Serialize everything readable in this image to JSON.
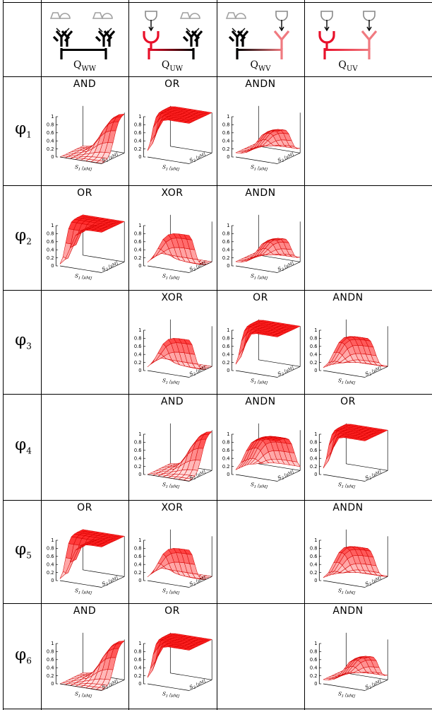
{
  "columns": [
    {
      "id": "ww",
      "label_main": "Q",
      "label_sub": "WW",
      "left": "gray",
      "right": "gray",
      "leftColor": "#000",
      "rightColor": "#000",
      "barLeft": "#000",
      "barRight": "#000"
    },
    {
      "id": "uw",
      "label_main": "Q",
      "label_sub": "UW",
      "left": "down",
      "right": "gray",
      "leftColor": "#e8102a",
      "rightColor": "#000",
      "barLeft": "#e8102a",
      "barRight": "#000"
    },
    {
      "id": "wv",
      "label_main": "Q",
      "label_sub": "WV",
      "left": "gray",
      "right": "downpale",
      "leftColor": "#000",
      "rightColor": "#f07a80",
      "barLeft": "#000",
      "barRight": "#f07a80"
    },
    {
      "id": "uv",
      "label_main": "Q",
      "label_sub": "UV",
      "left": "down",
      "right": "downpale",
      "leftColor": "#e8102a",
      "rightColor": "#f07a80",
      "barLeft": "#e8102a",
      "barRight": "#f07a80"
    }
  ],
  "rows": [
    {
      "label_main": "φ",
      "label_sub": "1",
      "cells": [
        {
          "title": "AND",
          "surface": "and"
        },
        {
          "title": "OR",
          "surface": "or"
        },
        {
          "title": "ANDN",
          "surface": "andn_small"
        },
        null
      ]
    },
    {
      "label_main": "φ",
      "label_sub": "2",
      "cells": [
        {
          "title": "OR",
          "surface": "or2"
        },
        {
          "title": "XOR",
          "surface": "xor"
        },
        {
          "title": "ANDN",
          "surface": "andn_small"
        },
        null
      ]
    },
    {
      "label_main": "φ",
      "label_sub": "3",
      "cells": [
        null,
        {
          "title": "XOR",
          "surface": "xor"
        },
        {
          "title": "OR",
          "surface": "or"
        },
        {
          "title": "ANDN",
          "surface": "andn_big"
        }
      ]
    },
    {
      "label_main": "φ",
      "label_sub": "4",
      "cells": [
        null,
        {
          "title": "AND",
          "surface": "and"
        },
        {
          "title": "ANDN",
          "surface": "andn_wide"
        },
        {
          "title": "OR",
          "surface": "or"
        }
      ]
    },
    {
      "label_main": "φ",
      "label_sub": "5",
      "cells": [
        {
          "title": "OR",
          "surface": "or2"
        },
        {
          "title": "XOR",
          "surface": "xor"
        },
        null,
        {
          "title": "ANDN",
          "surface": "andn_big"
        }
      ]
    },
    {
      "label_main": "φ",
      "label_sub": "6",
      "cells": [
        {
          "title": "AND",
          "surface": "and"
        },
        {
          "title": "OR",
          "surface": "or"
        },
        null,
        {
          "title": "ANDN",
          "surface": "andn_small"
        }
      ]
    }
  ],
  "axes": {
    "z_ticks": [
      "0",
      "0.2",
      "0.4",
      "0.6",
      "0.8",
      "1"
    ],
    "s1_label": "S",
    "s1_sub": "1",
    "s1_unit": "[μM]",
    "s2_label": "S",
    "s2_sub": "2",
    "s2_unit": "[μM]"
  },
  "colors": {
    "surface": "#ff1a1a",
    "grid": "#d40000",
    "line": "#000000"
  }
}
